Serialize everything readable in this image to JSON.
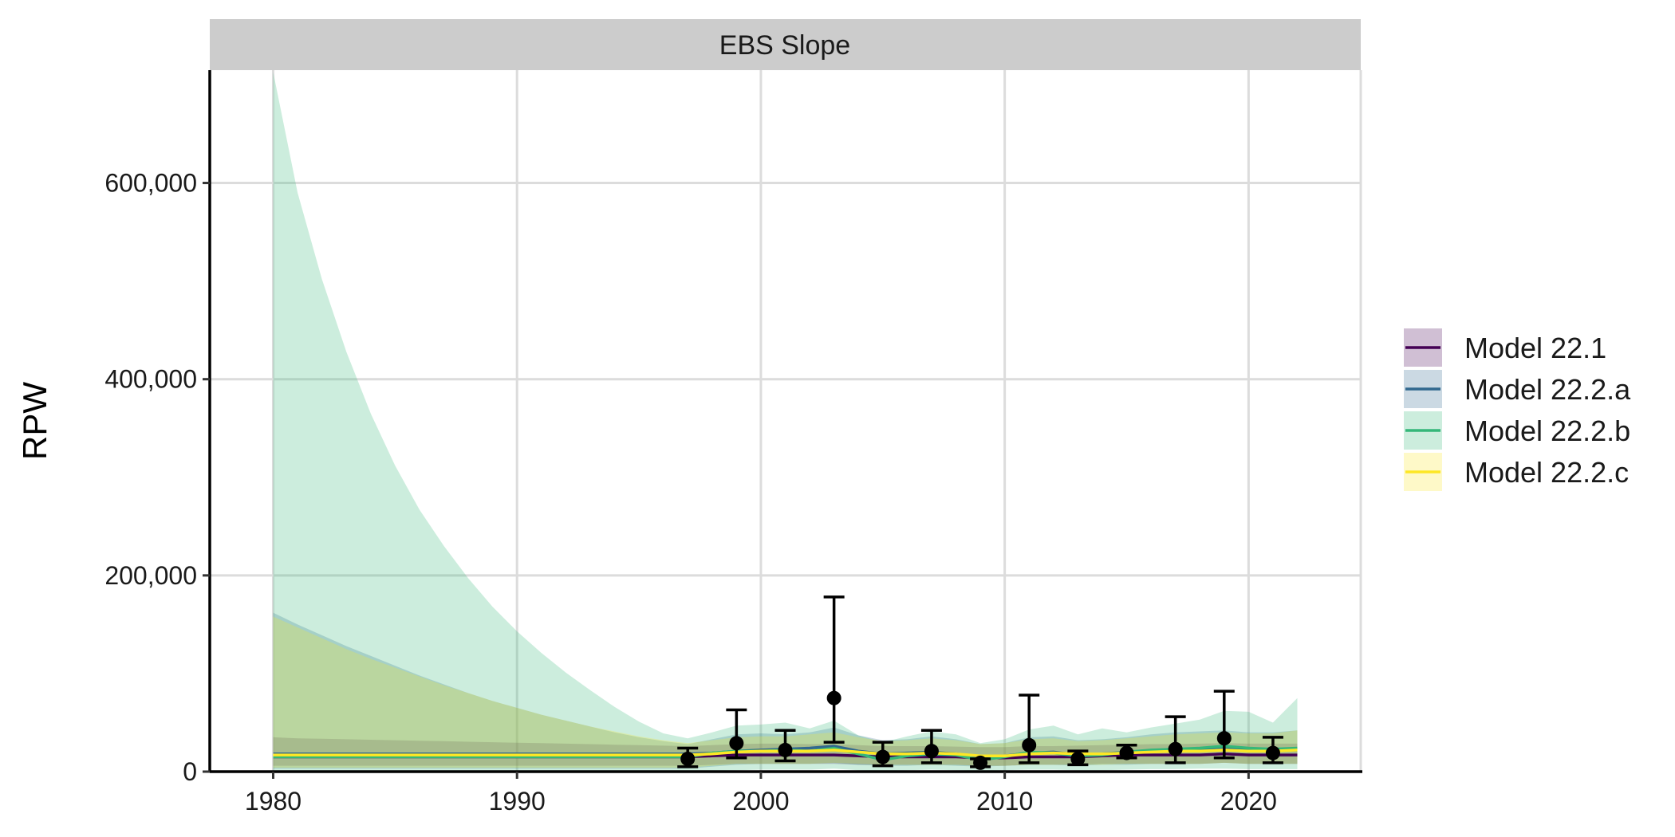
{
  "chart_data": {
    "type": "line",
    "panel_title": "EBS Slope",
    "ylabel": "RPW",
    "xlabel": "",
    "xlim": [
      1977.4,
      2024.6
    ],
    "ylim": [
      0,
      715000
    ],
    "x_ticks": [
      1980,
      1990,
      2000,
      2010,
      2020
    ],
    "y_ticks": [
      0,
      200000,
      400000,
      600000
    ],
    "y_tick_labels": [
      "0",
      "200,000",
      "400,000",
      "600,000"
    ],
    "grid": true,
    "legend_position": "right",
    "x": [
      1980,
      1981,
      1982,
      1983,
      1984,
      1985,
      1986,
      1987,
      1988,
      1989,
      1990,
      1991,
      1992,
      1993,
      1994,
      1995,
      1996,
      1997,
      1998,
      1999,
      2000,
      2001,
      2002,
      2003,
      2004,
      2005,
      2006,
      2007,
      2008,
      2009,
      2010,
      2011,
      2012,
      2013,
      2014,
      2015,
      2016,
      2017,
      2018,
      2019,
      2020,
      2021,
      2022
    ],
    "series": [
      {
        "name": "Model 22.1",
        "color": "#440154",
        "values": [
          15000,
          15000,
          15000,
          15000,
          15000,
          15000,
          15000,
          15000,
          15000,
          15000,
          15000,
          15000,
          15000,
          15000,
          15000,
          15000,
          15000,
          15000,
          16000,
          17000,
          17000,
          17000,
          17000,
          17000,
          16000,
          15000,
          15000,
          15000,
          15000,
          14000,
          14000,
          15000,
          15000,
          15000,
          16000,
          17000,
          17000,
          17000,
          17000,
          18000,
          17000,
          17000,
          17000
        ],
        "lower": [
          6000,
          6000,
          6000,
          6000,
          6000,
          6000,
          6000,
          6000,
          6000,
          6000,
          6000,
          6000,
          6000,
          6000,
          6000,
          6000,
          6000,
          6000,
          7000,
          8000,
          8000,
          8000,
          8000,
          8000,
          7000,
          7000,
          7000,
          7000,
          7000,
          6000,
          6000,
          7000,
          7000,
          7000,
          8000,
          8000,
          8000,
          8000,
          8000,
          9000,
          8000,
          8000,
          8000
        ],
        "upper": [
          35000,
          34000,
          33500,
          33000,
          32500,
          32000,
          31500,
          31000,
          30500,
          30000,
          29500,
          29000,
          28500,
          28000,
          27500,
          27000,
          26500,
          26000,
          27000,
          28000,
          28500,
          28500,
          28000,
          28000,
          27000,
          26000,
          26000,
          26000,
          25500,
          25000,
          25000,
          26000,
          26000,
          26500,
          27000,
          27500,
          28000,
          28000,
          28500,
          29000,
          28500,
          28500,
          28500
        ]
      },
      {
        "name": "Model 22.2.a",
        "color": "#31688E",
        "values": [
          18000,
          18000,
          18000,
          18000,
          18000,
          18000,
          18000,
          18000,
          18000,
          18000,
          18000,
          18000,
          18000,
          18000,
          18000,
          18000,
          18000,
          18000,
          19000,
          21000,
          22000,
          23000,
          24000,
          26000,
          21000,
          18000,
          19000,
          20000,
          18000,
          15000,
          16000,
          19000,
          20000,
          17000,
          18000,
          20000,
          21000,
          22000,
          23000,
          25000,
          23000,
          22000,
          22000
        ],
        "lower": [
          3000,
          3000,
          3000,
          3000,
          3000,
          3000,
          3000,
          3000,
          3000,
          3000,
          3000,
          3000,
          3000,
          3000,
          3000,
          3000,
          3000,
          3000,
          5000,
          7000,
          8000,
          8000,
          8000,
          9000,
          7000,
          6000,
          6000,
          7000,
          6000,
          5000,
          6000,
          7000,
          7000,
          6000,
          7000,
          7000,
          8000,
          8000,
          8000,
          9000,
          8000,
          8000,
          8000
        ],
        "upper": [
          162000,
          150000,
          139000,
          128000,
          118000,
          108000,
          98000,
          89000,
          80000,
          72000,
          65000,
          58000,
          52000,
          46000,
          40000,
          35000,
          31000,
          28000,
          33000,
          38000,
          39000,
          38000,
          40000,
          45000,
          37000,
          32000,
          33000,
          36000,
          33000,
          28000,
          29000,
          35000,
          36000,
          32000,
          33000,
          35000,
          38000,
          40000,
          41000,
          42000,
          40000,
          40000,
          42000
        ]
      },
      {
        "name": "Model 22.2.b",
        "color": "#35B779",
        "values": [
          15000,
          15000,
          15000,
          15000,
          15000,
          15000,
          15000,
          15000,
          15000,
          15000,
          15000,
          15000,
          15000,
          15000,
          15000,
          15000,
          15000,
          15000,
          19000,
          21000,
          21000,
          22000,
          21000,
          24000,
          18000,
          12000,
          16000,
          18000,
          17000,
          12000,
          15000,
          20000,
          19000,
          16000,
          17000,
          20000,
          22000,
          23000,
          24000,
          26000,
          24000,
          23000,
          24000
        ],
        "lower": [
          500,
          500,
          500,
          500,
          500,
          500,
          500,
          500,
          500,
          500,
          500,
          500,
          500,
          500,
          500,
          500,
          500,
          600,
          1000,
          1500,
          2000,
          2000,
          2000,
          3000,
          1500,
          1000,
          1500,
          2000,
          1500,
          1000,
          1500,
          2000,
          2000,
          1500,
          1500,
          2000,
          2500,
          2500,
          3000,
          3000,
          2500,
          2500,
          2500
        ],
        "upper": [
          713000,
          590000,
          502000,
          428000,
          365000,
          312000,
          267000,
          230000,
          197000,
          168000,
          143000,
          121000,
          101000,
          83000,
          66000,
          51000,
          39000,
          34000,
          40000,
          47000,
          48000,
          50000,
          44000,
          52000,
          37000,
          30000,
          36000,
          41000,
          38000,
          29000,
          33000,
          43000,
          47000,
          38000,
          44000,
          40000,
          45000,
          49000,
          53000,
          62000,
          61000,
          50000,
          75000
        ]
      },
      {
        "name": "Model 22.2.c",
        "color": "#FDE725",
        "values": [
          17000,
          17000,
          17000,
          17000,
          17000,
          17000,
          17000,
          17000,
          17000,
          17000,
          17000,
          17000,
          17000,
          17000,
          17000,
          17000,
          17000,
          17000,
          18000,
          20000,
          21000,
          21000,
          21000,
          22000,
          20000,
          18000,
          18000,
          19000,
          18000,
          16000,
          16000,
          18000,
          19000,
          18000,
          18000,
          19000,
          20000,
          21000,
          21000,
          22000,
          21000,
          21000,
          22000
        ],
        "lower": [
          4000,
          4000,
          4000,
          4000,
          4000,
          4000,
          4000,
          4000,
          4000,
          4000,
          4000,
          4000,
          4000,
          4000,
          4000,
          4000,
          4000,
          4000,
          6000,
          8000,
          8000,
          8000,
          8000,
          9000,
          8000,
          7000,
          7000,
          7000,
          7000,
          6000,
          6000,
          7000,
          7000,
          7000,
          7000,
          8000,
          8000,
          8000,
          8000,
          9000,
          8000,
          8000,
          8000
        ],
        "upper": [
          158000,
          147000,
          136000,
          125000,
          115000,
          106000,
          97000,
          88000,
          80000,
          72000,
          65000,
          58000,
          52000,
          46000,
          41000,
          36000,
          32000,
          29000,
          32000,
          35000,
          36000,
          36000,
          38000,
          40000,
          35000,
          31000,
          32000,
          34000,
          32000,
          28000,
          29000,
          33000,
          34000,
          31000,
          32000,
          34000,
          36000,
          38000,
          39000,
          40000,
          39000,
          39000,
          42000
        ]
      }
    ],
    "observed": {
      "x": [
        1997,
        1999,
        2001,
        2003,
        2005,
        2007,
        2009,
        2011,
        2013,
        2015,
        2017,
        2019,
        2021
      ],
      "y": [
        13000,
        29000,
        22000,
        75000,
        15000,
        21000,
        9000,
        27000,
        13000,
        19000,
        23000,
        34000,
        19000
      ],
      "lower": [
        5000,
        14000,
        11000,
        30000,
        6000,
        9000,
        5000,
        9000,
        7000,
        14000,
        9000,
        14000,
        9000
      ],
      "upper": [
        24000,
        63000,
        42000,
        178000,
        30000,
        42000,
        13000,
        78000,
        21000,
        27000,
        56000,
        82000,
        35000
      ]
    }
  }
}
